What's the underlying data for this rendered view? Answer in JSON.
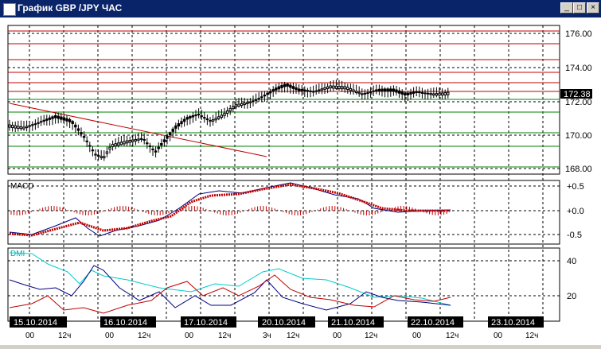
{
  "window": {
    "title": "График GBP /JPY ЧАС",
    "minimize_label": "_",
    "maximize_label": "□",
    "close_label": "×"
  },
  "price_panel": {
    "current_price": "172.38",
    "axis_labels": [
      "176.00",
      "174.00",
      "172.00",
      "170.00",
      "168.00"
    ]
  },
  "macd_panel": {
    "label": "MACD",
    "axis_labels": [
      "+0.5",
      "+0.0",
      "-0.5"
    ]
  },
  "dmi_panel": {
    "label": "DMI",
    "axis_labels": [
      "40",
      "20"
    ]
  },
  "time_axis": {
    "dates": [
      "15.10.2014",
      "16.10.2014",
      "17.10.2014",
      "20.10.2014",
      "21.10.2014",
      "22.10.2014",
      "23.10.2014"
    ],
    "hours": [
      "00",
      "12ч",
      "00",
      "12ч",
      "00",
      "12ч",
      "3ч",
      "12ч",
      "00",
      "12ч",
      "00",
      "12ч",
      "00",
      "12ч"
    ]
  },
  "colors": {
    "title_bg": "#0a246a",
    "resistance": "#c00000",
    "support": "#008000",
    "trend": "#c00000",
    "macd_line": "#000080",
    "macd_signal": "#c00000",
    "dmi_adx": "#00cccc",
    "dmi_plus": "#000080",
    "dmi_minus": "#c00000"
  }
}
